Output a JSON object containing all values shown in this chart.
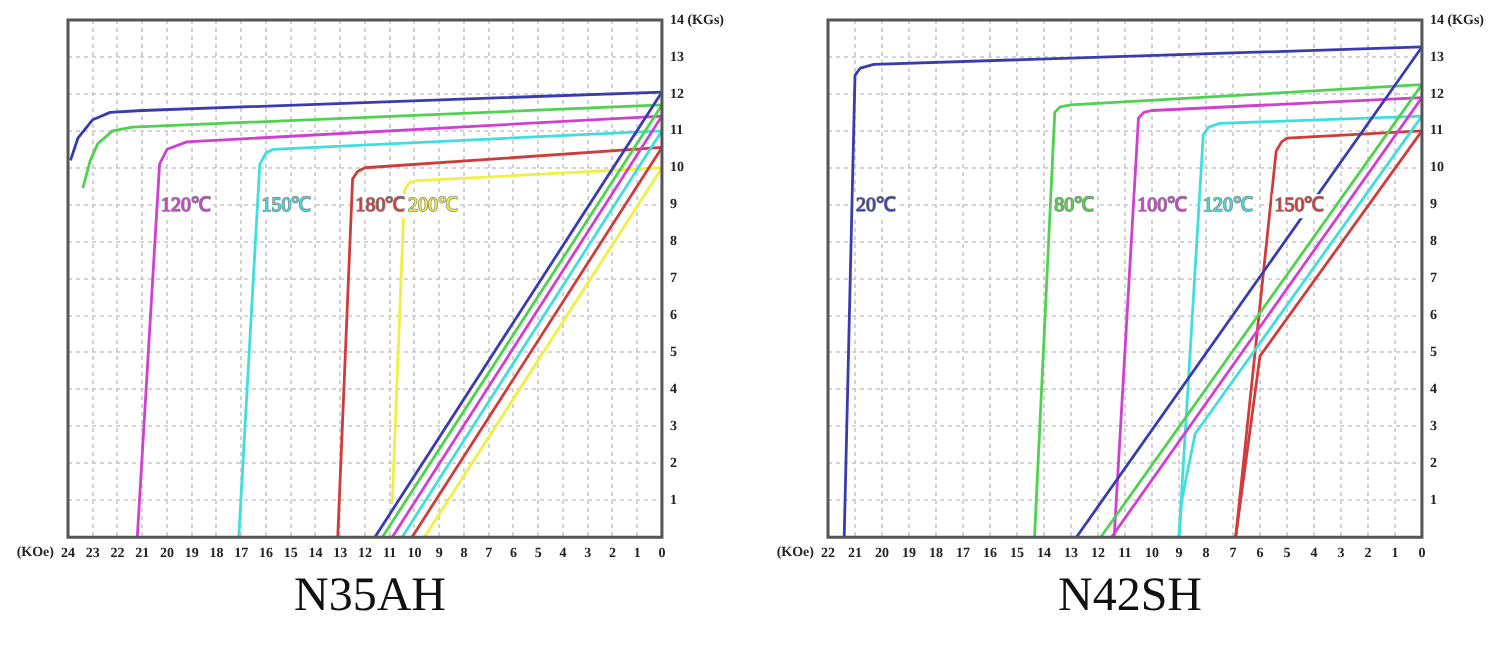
{
  "chart_data": [
    {
      "type": "line",
      "title": "N35AH",
      "grid": true,
      "legend": false,
      "marker": "none",
      "line_style": "solid",
      "xlabel": "(KOe)",
      "xlim": [
        24,
        0
      ],
      "xticks": [
        24,
        23,
        22,
        21,
        20,
        19,
        18,
        17,
        16,
        15,
        14,
        13,
        12,
        11,
        10,
        9,
        8,
        7,
        6,
        5,
        4,
        3,
        2,
        1,
        0
      ],
      "ylim": [
        0,
        14
      ],
      "yticks": [
        1,
        2,
        3,
        4,
        5,
        6,
        7,
        8,
        9,
        10,
        11,
        12,
        13,
        {
          "value": 14,
          "label": "14 (KGs)"
        }
      ],
      "series": [
        {
          "color": "#3b3bb0",
          "x": [
            23.9,
            23.6,
            23.0,
            22.3,
            21.0,
            0
          ],
          "values": [
            10.2,
            10.8,
            11.3,
            11.5,
            11.55,
            12.05
          ]
        },
        {
          "color": "#3b3bb0",
          "x": [
            11.6,
            0
          ],
          "values": [
            0,
            12.05
          ]
        },
        {
          "color": "#4fd24f",
          "x": [
            23.4,
            23.1,
            22.8,
            22.2,
            21.4,
            0
          ],
          "values": [
            9.45,
            10.2,
            10.65,
            11.0,
            11.1,
            11.7
          ]
        },
        {
          "color": "#4fd24f",
          "x": [
            11.3,
            0
          ],
          "values": [
            0,
            11.7
          ]
        },
        {
          "name": "120℃",
          "color": "#d040d0",
          "x": [
            21.2,
            20.3,
            20.0,
            19.2,
            0
          ],
          "values": [
            0,
            10.1,
            10.5,
            10.7,
            11.4
          ]
        },
        {
          "color": "#d040d0",
          "x": [
            10.9,
            0
          ],
          "values": [
            0,
            11.4
          ]
        },
        {
          "name": "150℃",
          "color": "#40dede",
          "x": [
            17.1,
            16.25,
            16.0,
            15.7,
            0
          ],
          "values": [
            0,
            10.1,
            10.4,
            10.5,
            11.0
          ]
        },
        {
          "color": "#40dede",
          "x": [
            10.5,
            0
          ],
          "values": [
            0,
            11.0
          ]
        },
        {
          "name": "180℃",
          "color": "#d03c3c",
          "x": [
            13.1,
            12.5,
            12.3,
            12.0,
            0
          ],
          "values": [
            0,
            9.7,
            9.9,
            10.0,
            10.55
          ]
        },
        {
          "color": "#d03c3c",
          "x": [
            10.1,
            0
          ],
          "values": [
            0,
            10.55
          ]
        },
        {
          "name": "200℃",
          "color": "#f0f040",
          "x": [
            10.9,
            10.4,
            10.2,
            9.9,
            0
          ],
          "values": [
            0.9,
            9.4,
            9.6,
            9.65,
            10.0
          ]
        },
        {
          "color": "#f0f040",
          "x": [
            9.6,
            0
          ],
          "values": [
            0,
            10.0
          ]
        }
      ]
    },
    {
      "type": "line",
      "title": "N42SH",
      "grid": true,
      "legend": false,
      "marker": "none",
      "line_style": "solid",
      "xlabel": "(KOe)",
      "xlim": [
        22,
        0
      ],
      "xticks": [
        22,
        21,
        20,
        19,
        18,
        17,
        16,
        15,
        14,
        13,
        12,
        11,
        10,
        9,
        8,
        7,
        6,
        5,
        4,
        3,
        2,
        1,
        0
      ],
      "ylim": [
        0,
        14
      ],
      "yticks": [
        1,
        2,
        3,
        4,
        5,
        6,
        7,
        8,
        9,
        10,
        11,
        12,
        13,
        {
          "value": 14,
          "label": "14 (KGs)"
        }
      ],
      "series": [
        {
          "name": "20℃",
          "color": "#3b3bb0",
          "x": [
            21.4,
            21.0,
            20.8,
            20.3,
            0
          ],
          "values": [
            0,
            12.5,
            12.7,
            12.8,
            13.27
          ]
        },
        {
          "color": "#3b3bb0",
          "x": [
            12.8,
            0
          ],
          "values": [
            0,
            13.27
          ]
        },
        {
          "name": "80℃",
          "color": "#4fd24f",
          "x": [
            14.35,
            13.6,
            13.4,
            13.0,
            0
          ],
          "values": [
            0,
            11.5,
            11.65,
            11.7,
            12.25
          ]
        },
        {
          "color": "#4fd24f",
          "x": [
            11.9,
            0
          ],
          "values": [
            0,
            12.25
          ]
        },
        {
          "name": "100℃",
          "color": "#d040d0",
          "x": [
            11.4,
            10.5,
            10.3,
            10.0,
            0
          ],
          "values": [
            0,
            11.35,
            11.5,
            11.55,
            11.9
          ]
        },
        {
          "color": "#d040d0",
          "x": [
            11.5,
            0
          ],
          "values": [
            0,
            11.9
          ]
        },
        {
          "name": "120℃",
          "color": "#40dede",
          "x": [
            9.0,
            8.1,
            7.9,
            7.5,
            0
          ],
          "values": [
            0,
            10.9,
            11.1,
            11.2,
            11.4
          ]
        },
        {
          "color": "#40dede",
          "x": [
            9.0,
            8.9,
            8.4,
            0
          ],
          "values": [
            0,
            1.0,
            2.8,
            11.4
          ]
        },
        {
          "name": "150℃",
          "color": "#d03c3c",
          "x": [
            6.9,
            5.4,
            5.2,
            5.0,
            0
          ],
          "values": [
            0,
            10.45,
            10.7,
            10.8,
            11.0
          ]
        },
        {
          "color": "#d03c3c",
          "x": [
            6.9,
            6.0,
            0
          ],
          "values": [
            0,
            4.9,
            11.0
          ]
        }
      ]
    }
  ]
}
